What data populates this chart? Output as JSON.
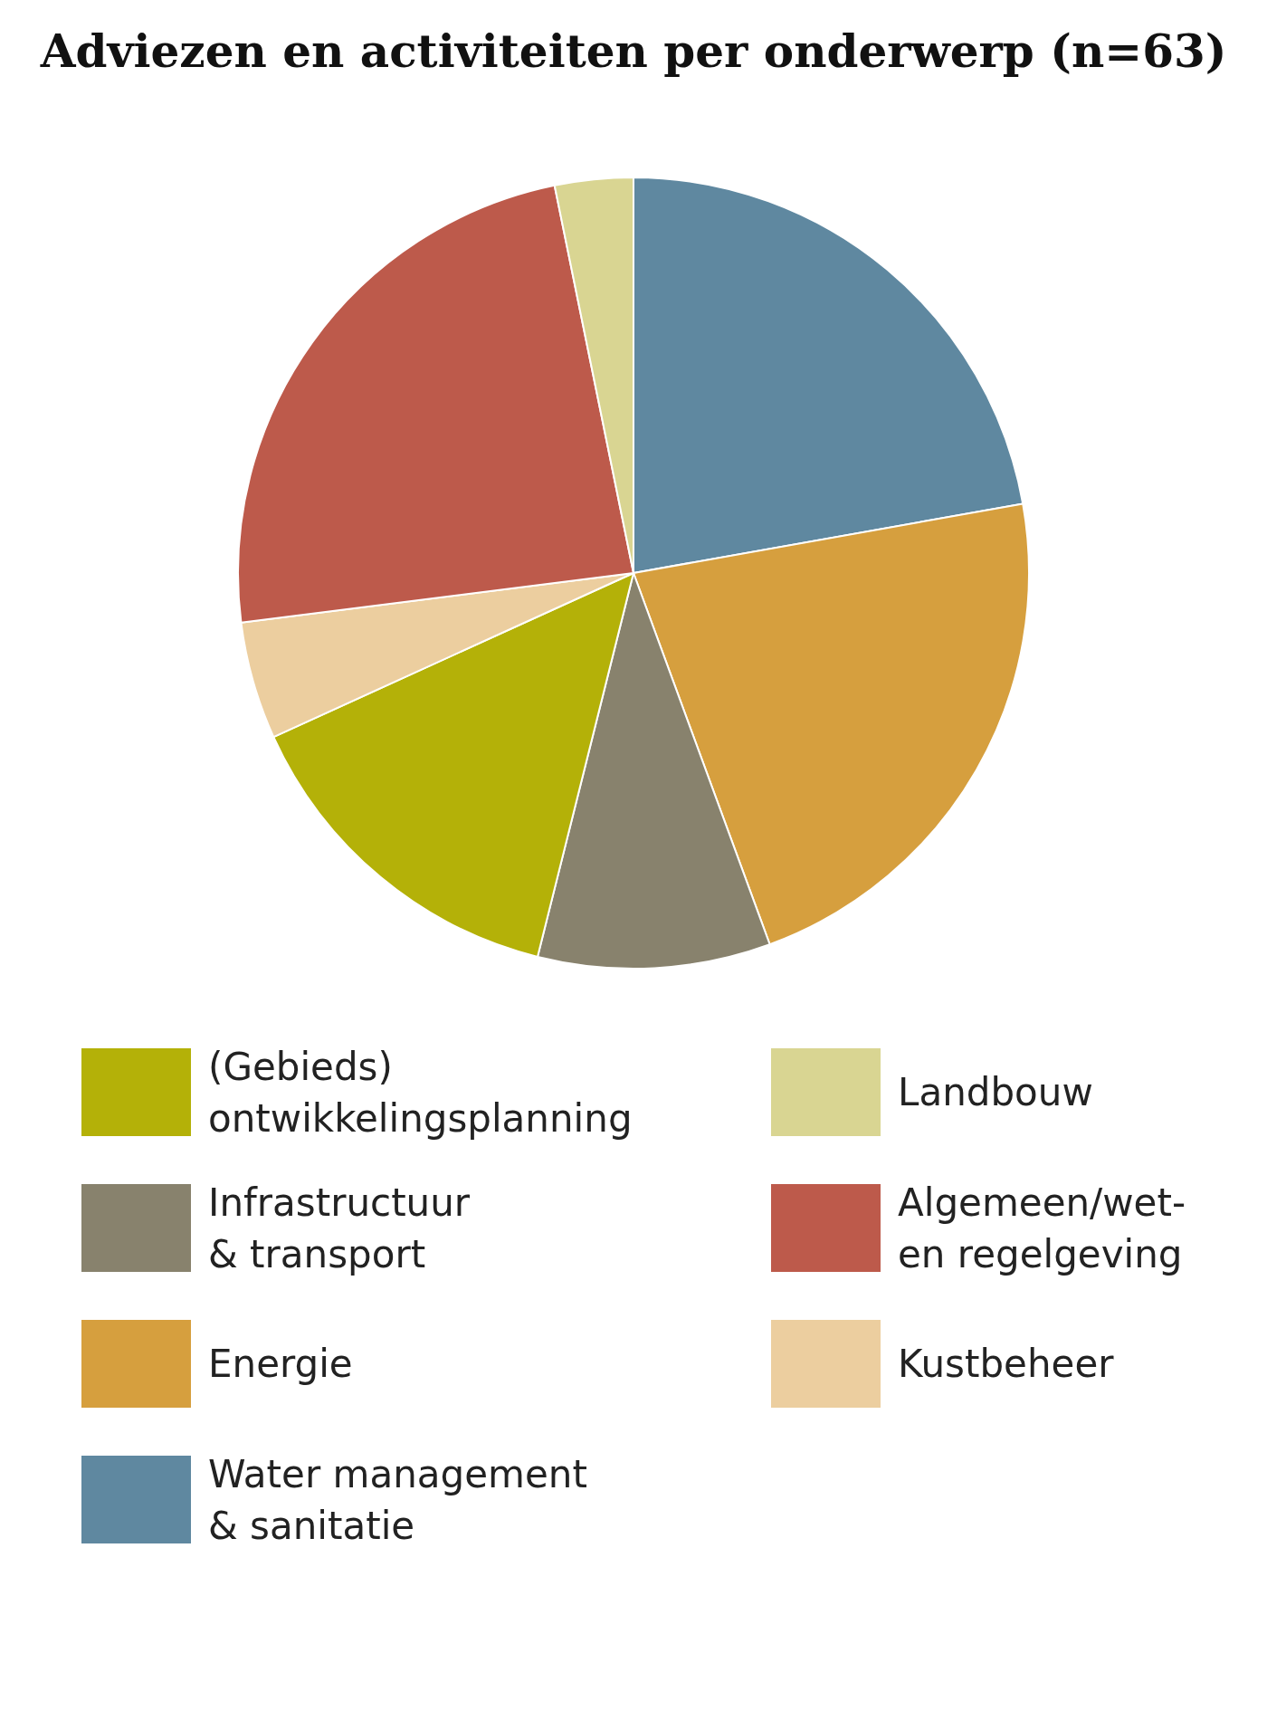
{
  "chart_data": {
    "type": "pie",
    "title": "Adviezen en activiteiten per onderwerp (n=63)",
    "categories": [
      "Water management\n& sanitatie",
      "Energie",
      "Infrastructuur\n& transport",
      "(Gebieds)\nontwikkelingsplanning",
      "Kustbeheer",
      "Algemeen/wet-\nen regelgeving",
      "Landbouw"
    ],
    "values": [
      22.2,
      22.2,
      9.5,
      14.3,
      4.8,
      23.8,
      3.2
    ],
    "colors": [
      "#5f88a0",
      "#d69f3e",
      "#88826d",
      "#b4b108",
      "#ecce9f",
      "#bd5a4b",
      "#d9d592"
    ],
    "legend": "bottom"
  }
}
